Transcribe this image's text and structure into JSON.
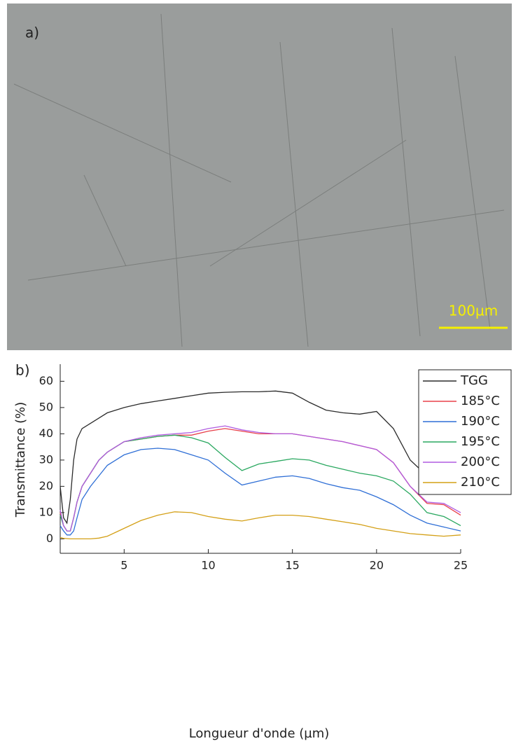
{
  "panel_a": {
    "label": "a)",
    "scale_bar": "100µm"
  },
  "panel_b": {
    "label": "b)"
  },
  "chart_data": {
    "type": "line",
    "xlabel": "Longueur d'onde (µm)",
    "ylabel": "Transmittance (%)",
    "x": [
      1.2,
      1.4,
      1.6,
      1.8,
      2,
      2.2,
      2.5,
      3,
      3.5,
      4,
      4.5,
      5,
      6,
      7,
      8,
      9,
      10,
      11,
      12,
      13,
      14,
      15,
      16,
      17,
      18,
      19,
      20,
      21,
      22,
      23,
      24,
      25
    ],
    "series": [
      {
        "name": "TGG",
        "color": "#2b2b2b",
        "values": [
          20,
          8,
          6,
          15,
          30,
          38,
          42,
          44,
          46,
          48,
          49,
          50,
          51.5,
          52.5,
          53.5,
          54.5,
          55.5,
          55.8,
          56,
          56,
          56.3,
          55.5,
          52,
          49,
          48,
          47.5,
          48.5,
          42,
          30,
          24,
          23.5,
          18
        ]
      },
      {
        "name": "185°C",
        "color": "#e8404a",
        "values": [
          10,
          5,
          3,
          3,
          8,
          14,
          20,
          25,
          30,
          33,
          35,
          37,
          38,
          39,
          39.5,
          39.5,
          41,
          42,
          41,
          40,
          40,
          40,
          39,
          38,
          37,
          35.5,
          34,
          29,
          20,
          13.5,
          13,
          9
        ]
      },
      {
        "name": "190°C",
        "color": "#2f6fd6",
        "values": [
          5,
          3,
          1.5,
          1.5,
          3,
          8,
          15,
          20,
          24,
          28,
          30,
          32,
          34,
          34.5,
          34,
          32,
          30,
          25,
          20.5,
          22,
          23.5,
          24,
          23,
          21,
          19.5,
          18.5,
          16,
          13,
          9,
          6,
          4.5,
          3
        ]
      },
      {
        "name": "195°C",
        "color": "#2aa860",
        "values": [
          9,
          5,
          3,
          3,
          8,
          14,
          20,
          25,
          30,
          33,
          35,
          37,
          38,
          39,
          39.5,
          38.5,
          36.5,
          31,
          26,
          28.5,
          29.5,
          30.5,
          30,
          28,
          26.5,
          25,
          24,
          22,
          17,
          10,
          8.5,
          5
        ]
      },
      {
        "name": "200°C",
        "color": "#b05ce0",
        "values": [
          11,
          5,
          3,
          3,
          8,
          14,
          20,
          25,
          30,
          33,
          35,
          37,
          38.5,
          39.5,
          40,
          40.5,
          42,
          43,
          41.5,
          40.5,
          40,
          40,
          39,
          38,
          37,
          35.5,
          34,
          29,
          20,
          14,
          13.5,
          10
        ]
      },
      {
        "name": "210°C",
        "color": "#d4a017",
        "values": [
          0.5,
          0.2,
          0.1,
          0,
          0,
          0,
          0,
          0,
          0.3,
          1,
          2.5,
          4,
          7,
          9,
          10.3,
          10,
          8.5,
          7.5,
          6.8,
          8,
          9,
          9,
          8.5,
          7.5,
          6.5,
          5.5,
          4,
          3,
          2,
          1.5,
          1,
          1.5
        ]
      }
    ],
    "xlim": [
      1.2,
      25
    ],
    "ylim": [
      -5.5,
      66.5
    ],
    "xticks": [
      5,
      10,
      15,
      20,
      25
    ],
    "yticks": [
      0,
      10,
      20,
      30,
      40,
      50,
      60
    ],
    "legend": "upper right"
  }
}
